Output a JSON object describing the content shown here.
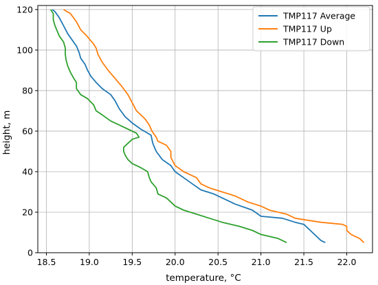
{
  "chart_data": {
    "type": "line",
    "title": "",
    "xlabel": "temperature, °C",
    "ylabel": "height, m",
    "xlim": [
      18.4,
      22.3
    ],
    "ylim": [
      0,
      122
    ],
    "x_ticks": [
      18.5,
      19.0,
      19.5,
      20.0,
      20.5,
      21.0,
      21.5,
      22.0
    ],
    "x_tick_labels": [
      "18.5",
      "19.0",
      "19.5",
      "20.0",
      "20.5",
      "21.0",
      "21.5",
      "22.0"
    ],
    "y_ticks": [
      0,
      20,
      40,
      60,
      80,
      100,
      120
    ],
    "y_tick_labels": [
      "0",
      "20",
      "40",
      "60",
      "80",
      "100",
      "120"
    ],
    "grid": true,
    "legend_position": "top-right",
    "colors": {
      "TMP117 Average": "#1f77b4",
      "TMP117 Up": "#ff7f0e",
      "TMP117 Down": "#2ca02c"
    },
    "series": [
      {
        "name": "TMP117 Average",
        "points": [
          [
            21.75,
            5
          ],
          [
            21.7,
            6
          ],
          [
            21.6,
            10
          ],
          [
            21.5,
            14
          ],
          [
            21.4,
            15
          ],
          [
            21.25,
            17
          ],
          [
            21.0,
            18
          ],
          [
            20.9,
            21
          ],
          [
            20.7,
            24
          ],
          [
            20.55,
            27
          ],
          [
            20.45,
            29
          ],
          [
            20.3,
            31
          ],
          [
            20.2,
            34
          ],
          [
            20.1,
            37
          ],
          [
            20.0,
            40
          ],
          [
            19.95,
            43
          ],
          [
            19.85,
            46
          ],
          [
            19.78,
            50
          ],
          [
            19.74,
            54
          ],
          [
            19.72,
            58
          ],
          [
            19.6,
            61
          ],
          [
            19.5,
            64
          ],
          [
            19.42,
            67
          ],
          [
            19.35,
            71
          ],
          [
            19.3,
            75
          ],
          [
            19.25,
            78
          ],
          [
            19.15,
            81
          ],
          [
            19.08,
            84
          ],
          [
            19.02,
            87
          ],
          [
            18.98,
            90
          ],
          [
            18.95,
            93
          ],
          [
            18.9,
            96
          ],
          [
            18.88,
            99
          ],
          [
            18.85,
            102
          ],
          [
            18.8,
            105
          ],
          [
            18.75,
            108
          ],
          [
            18.7,
            112
          ],
          [
            18.65,
            116
          ],
          [
            18.6,
            119
          ],
          [
            18.57,
            120
          ]
        ]
      },
      {
        "name": "TMP117 Up",
        "points": [
          [
            22.2,
            5
          ],
          [
            22.15,
            7
          ],
          [
            22.05,
            9
          ],
          [
            22.0,
            11
          ],
          [
            22.0,
            13
          ],
          [
            21.95,
            14
          ],
          [
            21.7,
            15
          ],
          [
            21.55,
            16
          ],
          [
            21.4,
            17
          ],
          [
            21.3,
            19
          ],
          [
            21.1,
            21
          ],
          [
            21.0,
            23
          ],
          [
            20.85,
            25
          ],
          [
            20.7,
            28
          ],
          [
            20.55,
            30
          ],
          [
            20.4,
            32
          ],
          [
            20.3,
            34
          ],
          [
            20.25,
            37
          ],
          [
            20.1,
            40
          ],
          [
            20.0,
            43
          ],
          [
            19.95,
            47
          ],
          [
            19.95,
            50
          ],
          [
            19.9,
            53
          ],
          [
            19.8,
            55
          ],
          [
            19.78,
            57
          ],
          [
            19.73,
            60
          ],
          [
            19.7,
            63
          ],
          [
            19.65,
            66
          ],
          [
            19.55,
            70
          ],
          [
            19.5,
            74
          ],
          [
            19.45,
            78
          ],
          [
            19.38,
            82
          ],
          [
            19.3,
            86
          ],
          [
            19.22,
            90
          ],
          [
            19.15,
            94
          ],
          [
            19.1,
            98
          ],
          [
            19.08,
            101
          ],
          [
            19.05,
            103
          ],
          [
            18.97,
            107
          ],
          [
            18.9,
            110
          ],
          [
            18.85,
            114
          ],
          [
            18.78,
            118
          ],
          [
            18.7,
            120
          ]
        ]
      },
      {
        "name": "TMP117 Down",
        "points": [
          [
            21.3,
            5
          ],
          [
            21.2,
            7
          ],
          [
            21.0,
            9
          ],
          [
            20.9,
            11
          ],
          [
            20.75,
            13
          ],
          [
            20.55,
            15
          ],
          [
            20.4,
            17
          ],
          [
            20.25,
            19
          ],
          [
            20.1,
            21
          ],
          [
            20.0,
            23
          ],
          [
            19.95,
            25
          ],
          [
            19.9,
            27
          ],
          [
            19.8,
            29
          ],
          [
            19.78,
            32
          ],
          [
            19.72,
            35
          ],
          [
            19.7,
            37
          ],
          [
            19.68,
            40
          ],
          [
            19.6,
            42
          ],
          [
            19.5,
            44
          ],
          [
            19.45,
            46
          ],
          [
            19.42,
            48
          ],
          [
            19.4,
            50
          ],
          [
            19.4,
            52
          ],
          [
            19.45,
            54
          ],
          [
            19.5,
            56
          ],
          [
            19.58,
            57
          ],
          [
            19.55,
            59
          ],
          [
            19.45,
            61
          ],
          [
            19.35,
            63
          ],
          [
            19.25,
            65
          ],
          [
            19.15,
            68
          ],
          [
            19.08,
            70
          ],
          [
            19.05,
            73
          ],
          [
            18.98,
            76
          ],
          [
            18.9,
            78
          ],
          [
            18.85,
            81
          ],
          [
            18.85,
            84
          ],
          [
            18.82,
            86
          ],
          [
            18.78,
            89
          ],
          [
            18.75,
            92
          ],
          [
            18.73,
            95
          ],
          [
            18.72,
            98
          ],
          [
            18.72,
            101
          ],
          [
            18.7,
            104
          ],
          [
            18.65,
            107
          ],
          [
            18.62,
            110
          ],
          [
            18.6,
            112
          ],
          [
            18.58,
            115
          ],
          [
            18.58,
            118
          ],
          [
            18.55,
            120
          ]
        ]
      }
    ]
  }
}
